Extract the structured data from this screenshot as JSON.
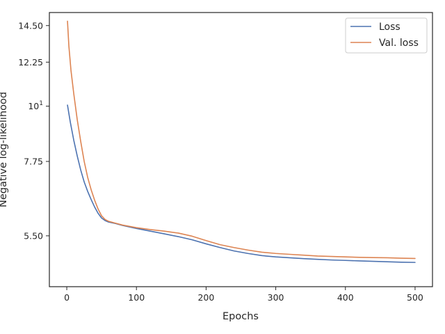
{
  "chart_data": {
    "type": "line",
    "xlabel": "Epochs",
    "ylabel": "Negative log-likelihood",
    "xlim": [
      -25,
      525
    ],
    "ylim": [
      4.35,
      15.4
    ],
    "yscale": "log",
    "x_ticks": [
      {
        "value": 0,
        "label": "0"
      },
      {
        "value": 100,
        "label": "100"
      },
      {
        "value": 200,
        "label": "200"
      },
      {
        "value": 300,
        "label": "300"
      },
      {
        "value": 400,
        "label": "400"
      },
      {
        "value": 500,
        "label": "500"
      }
    ],
    "y_ticks": [
      {
        "value": 5.5,
        "label": "5.50"
      },
      {
        "value": 7.75,
        "label": "7.75"
      },
      {
        "value": 10,
        "label": "10",
        "sup": "1"
      },
      {
        "value": 12.25,
        "label": "12.25"
      },
      {
        "value": 14.5,
        "label": "14.50"
      }
    ],
    "grid": false,
    "legend_position": "top-right",
    "series": [
      {
        "name": "Loss",
        "color": "#4c72b0",
        "x": [
          1,
          5,
          10,
          15,
          20,
          25,
          30,
          35,
          40,
          45,
          50,
          55,
          60,
          70,
          80,
          100,
          120,
          140,
          160,
          180,
          200,
          220,
          240,
          260,
          280,
          300,
          320,
          340,
          360,
          380,
          400,
          420,
          440,
          460,
          480,
          500
        ],
        "y": [
          10.05,
          9.3,
          8.55,
          7.95,
          7.45,
          7.05,
          6.75,
          6.5,
          6.28,
          6.1,
          5.97,
          5.9,
          5.86,
          5.82,
          5.77,
          5.69,
          5.62,
          5.55,
          5.48,
          5.4,
          5.3,
          5.21,
          5.13,
          5.07,
          5.02,
          4.99,
          4.97,
          4.95,
          4.935,
          4.92,
          4.91,
          4.9,
          4.89,
          4.88,
          4.87,
          4.865
        ]
      },
      {
        "name": "Val. loss",
        "color": "#dd8452",
        "x": [
          1,
          3,
          6,
          10,
          15,
          20,
          25,
          30,
          35,
          40,
          45,
          50,
          55,
          60,
          70,
          80,
          100,
          120,
          140,
          160,
          180,
          200,
          220,
          240,
          260,
          280,
          300,
          320,
          340,
          360,
          380,
          400,
          420,
          440,
          460,
          480,
          500
        ],
        "y": [
          14.8,
          13.2,
          11.8,
          10.6,
          9.4,
          8.5,
          7.75,
          7.2,
          6.8,
          6.48,
          6.22,
          6.03,
          5.93,
          5.88,
          5.83,
          5.78,
          5.71,
          5.66,
          5.62,
          5.57,
          5.49,
          5.38,
          5.28,
          5.21,
          5.15,
          5.1,
          5.07,
          5.05,
          5.03,
          5.01,
          5.0,
          4.99,
          4.98,
          4.975,
          4.97,
          4.96,
          4.955
        ]
      }
    ]
  }
}
